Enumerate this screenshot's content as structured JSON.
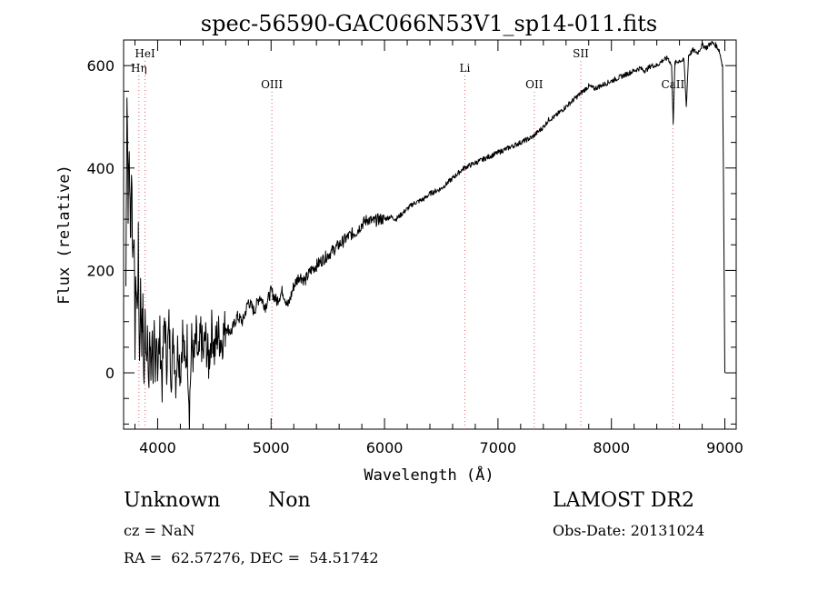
{
  "chart_data": {
    "type": "line",
    "title": "spec-56590-GAC066N53V1_sp14-011.fits",
    "xlabel": "Wavelength (Å)",
    "ylabel": "Flux (relative)",
    "xlim": [
      3700,
      9100
    ],
    "ylim": [
      -110,
      650
    ],
    "xticks": [
      4000,
      5000,
      6000,
      7000,
      8000,
      9000
    ],
    "yticks": [
      0,
      200,
      400,
      600
    ],
    "grid": false,
    "line_color": "#000000",
    "marker_color": "#e06060",
    "series": [
      {
        "points": [
          [
            3720,
            170
          ],
          [
            3730,
            560
          ],
          [
            3740,
            330
          ],
          [
            3750,
            440
          ],
          [
            3760,
            250
          ],
          [
            3770,
            410
          ],
          [
            3780,
            220
          ],
          [
            3790,
            300
          ],
          [
            3800,
            60
          ],
          [
            3810,
            190
          ],
          [
            3820,
            110
          ],
          [
            3830,
            250
          ],
          [
            3840,
            20
          ],
          [
            3850,
            160
          ],
          [
            3860,
            70
          ],
          [
            3870,
            120
          ],
          [
            3880,
            -30
          ],
          [
            3890,
            110
          ],
          [
            3900,
            40
          ],
          [
            3910,
            100
          ],
          [
            3920,
            -60
          ],
          [
            3930,
            80
          ],
          [
            3940,
            -10
          ],
          [
            3950,
            90
          ],
          [
            3960,
            0
          ],
          [
            3970,
            60
          ],
          [
            3980,
            -40
          ],
          [
            3990,
            110
          ],
          [
            4000,
            10
          ],
          [
            4020,
            70
          ],
          [
            4040,
            -20
          ],
          [
            4060,
            110
          ],
          [
            4080,
            20
          ],
          [
            4100,
            90
          ],
          [
            4120,
            0
          ],
          [
            4140,
            70
          ],
          [
            4160,
            -10
          ],
          [
            4180,
            60
          ],
          [
            4200,
            0
          ],
          [
            4220,
            80
          ],
          [
            4240,
            10
          ],
          [
            4260,
            60
          ],
          [
            4280,
            -70
          ],
          [
            4300,
            60
          ],
          [
            4320,
            20
          ],
          [
            4340,
            70
          ],
          [
            4360,
            10
          ],
          [
            4380,
            80
          ],
          [
            4400,
            30
          ],
          [
            4420,
            70
          ],
          [
            4450,
            20
          ],
          [
            4480,
            90
          ],
          [
            4500,
            40
          ],
          [
            4530,
            80
          ],
          [
            4560,
            60
          ],
          [
            4600,
            90
          ],
          [
            4650,
            80
          ],
          [
            4700,
            110
          ],
          [
            4750,
            100
          ],
          [
            4800,
            140
          ],
          [
            4850,
            120
          ],
          [
            4900,
            150
          ],
          [
            4950,
            130
          ],
          [
            5000,
            160
          ],
          [
            5050,
            140
          ],
          [
            5100,
            160
          ],
          [
            5150,
            130
          ],
          [
            5200,
            170
          ],
          [
            5250,
            190
          ],
          [
            5300,
            180
          ],
          [
            5350,
            200
          ],
          [
            5400,
            210
          ],
          [
            5450,
            220
          ],
          [
            5500,
            230
          ],
          [
            5550,
            240
          ],
          [
            5600,
            250
          ],
          [
            5650,
            260
          ],
          [
            5700,
            270
          ],
          [
            5750,
            275
          ],
          [
            5800,
            290
          ],
          [
            5850,
            300
          ],
          [
            5900,
            295
          ],
          [
            5950,
            300
          ],
          [
            6000,
            300
          ],
          [
            6050,
            305
          ],
          [
            6100,
            300
          ],
          [
            6150,
            310
          ],
          [
            6200,
            320
          ],
          [
            6250,
            330
          ],
          [
            6300,
            335
          ],
          [
            6350,
            340
          ],
          [
            6400,
            350
          ],
          [
            6450,
            355
          ],
          [
            6500,
            360
          ],
          [
            6550,
            370
          ],
          [
            6600,
            380
          ],
          [
            6650,
            390
          ],
          [
            6700,
            400
          ],
          [
            6750,
            405
          ],
          [
            6800,
            410
          ],
          [
            6850,
            415
          ],
          [
            6900,
            420
          ],
          [
            6950,
            425
          ],
          [
            7000,
            430
          ],
          [
            7050,
            435
          ],
          [
            7100,
            440
          ],
          [
            7150,
            445
          ],
          [
            7200,
            450
          ],
          [
            7250,
            455
          ],
          [
            7300,
            460
          ],
          [
            7350,
            470
          ],
          [
            7400,
            480
          ],
          [
            7450,
            495
          ],
          [
            7500,
            500
          ],
          [
            7550,
            510
          ],
          [
            7600,
            520
          ],
          [
            7650,
            530
          ],
          [
            7700,
            540
          ],
          [
            7750,
            550
          ],
          [
            7800,
            560
          ],
          [
            7850,
            555
          ],
          [
            7900,
            560
          ],
          [
            7950,
            565
          ],
          [
            8000,
            570
          ],
          [
            8050,
            575
          ],
          [
            8100,
            580
          ],
          [
            8150,
            585
          ],
          [
            8200,
            590
          ],
          [
            8250,
            595
          ],
          [
            8300,
            590
          ],
          [
            8350,
            600
          ],
          [
            8400,
            600
          ],
          [
            8450,
            610
          ],
          [
            8500,
            615
          ],
          [
            8530,
            600
          ],
          [
            8545,
            490
          ],
          [
            8560,
            605
          ],
          [
            8600,
            610
          ],
          [
            8640,
            610
          ],
          [
            8660,
            520
          ],
          [
            8680,
            620
          ],
          [
            8720,
            630
          ],
          [
            8760,
            625
          ],
          [
            8800,
            640
          ],
          [
            8840,
            635
          ],
          [
            8880,
            645
          ],
          [
            8920,
            640
          ],
          [
            8950,
            630
          ],
          [
            8980,
            600
          ],
          [
            8990,
            300
          ],
          [
            9000,
            0
          ]
        ]
      }
    ],
    "line_markers": [
      {
        "label": "Hη",
        "x": 3835,
        "row": 2
      },
      {
        "label": "HeI",
        "x": 3889,
        "row": 1
      },
      {
        "label": "OIII",
        "x": 5007,
        "row": 3
      },
      {
        "label": "Li",
        "x": 6708,
        "row": 2
      },
      {
        "label": "OII",
        "x": 7320,
        "row": 3
      },
      {
        "label": "SII",
        "x": 7730,
        "row": 1
      },
      {
        "label": "CaII",
        "x": 8542,
        "row": 3
      }
    ]
  },
  "info": {
    "class_label": "Unknown",
    "subclass_label": "Non",
    "survey_label": "LAMOST DR2",
    "cz_label": "cz = NaN",
    "obs_date_label": "Obs-Date: 20131024",
    "radec_label": "RA =  62.57276, DEC =  54.51742"
  }
}
